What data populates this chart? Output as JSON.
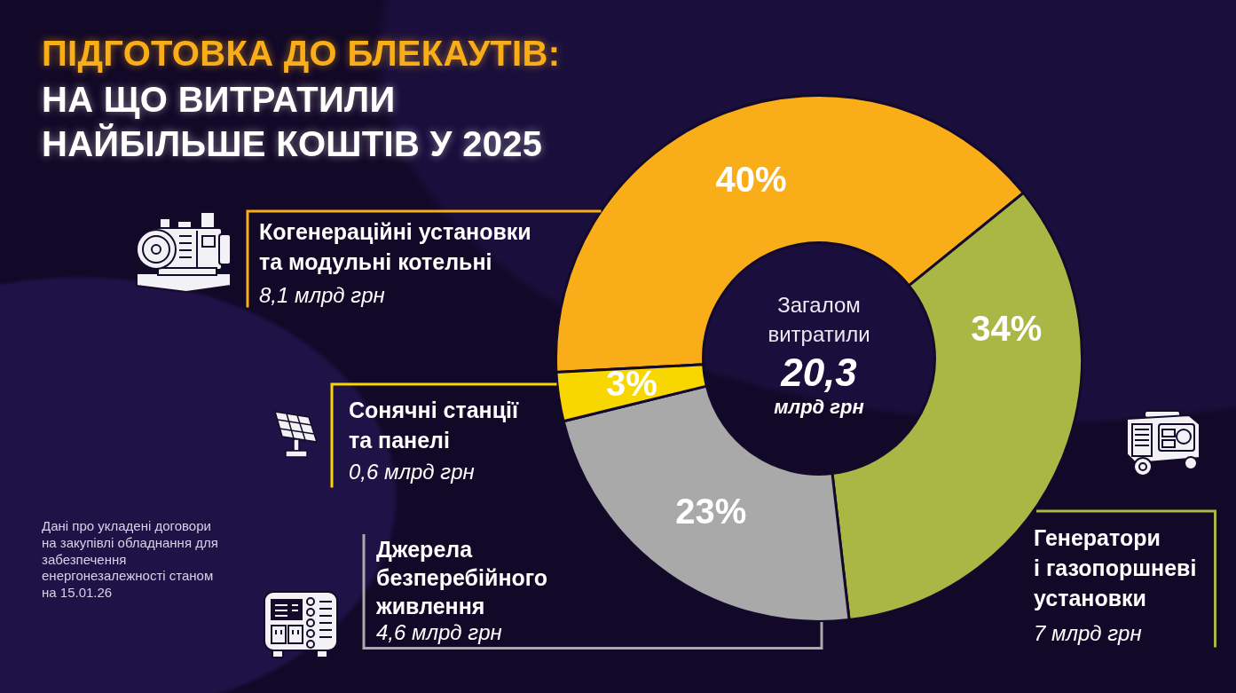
{
  "chart_data": {
    "type": "donut",
    "title": "ПІДГОТОВКА ДО БЛЕКАУТІВ:",
    "subtitle": "НА ЩО ВИТРАТИЛИ НАЙБІЛЬШЕ КОШТІВ У 2025",
    "categories": [
      "Когенераційні установки та модульні котельні",
      "Генератори і газопоршневі установки",
      "Джерела безперебійного живлення",
      "Сонячні станції та панелі"
    ],
    "values": [
      40,
      34,
      23,
      3
    ],
    "colors": [
      "#f9ad18",
      "#abb744",
      "#a9a9a9",
      "#f8d600"
    ],
    "value_labels": [
      "40%",
      "34%",
      "23%",
      "3%"
    ],
    "annotations": [
      "Загалом витратили",
      "20,3",
      "млрд грн",
      "Дані про укладені договори на закупівлі обладнання для забезпечення енергонезалежності станом на 15.01.26",
      "8,1 млрд грн",
      "7 млрд грн",
      "4,6 млрд грн",
      "0,6 млрд грн"
    ]
  }
}
